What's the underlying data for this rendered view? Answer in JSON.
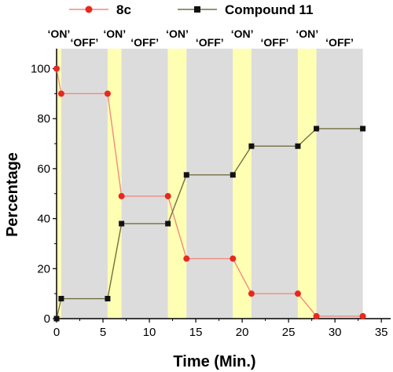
{
  "chart_data": {
    "type": "line",
    "xlabel": "Time (Min.)",
    "ylabel": "Percentage",
    "xlim": [
      0,
      36
    ],
    "ylim": [
      0,
      108
    ],
    "xticks": [
      0,
      5,
      10,
      15,
      20,
      25,
      30,
      35
    ],
    "yticks": [
      0,
      20,
      40,
      60,
      80,
      100
    ],
    "x_tick_labels": [
      "0",
      "5",
      "10",
      "15",
      "20",
      "25",
      "30",
      "35"
    ],
    "y_tick_labels": [
      "0",
      "20",
      "40",
      "60",
      "80",
      "100"
    ],
    "grid": false,
    "legend_position": "top",
    "phases": [
      {
        "label": "‘ON’",
        "start": 0,
        "end": 0.5,
        "color": "#ffffb3"
      },
      {
        "label": "‘OFF’",
        "start": 0.5,
        "end": 5.5,
        "color": "#dcdcdc"
      },
      {
        "label": "‘ON’",
        "start": 5.5,
        "end": 7,
        "color": "#ffffb3"
      },
      {
        "label": "‘OFF’",
        "start": 7,
        "end": 12,
        "color": "#dcdcdc"
      },
      {
        "label": "‘ON’",
        "start": 12,
        "end": 14,
        "color": "#ffffb3"
      },
      {
        "label": "‘OFF’",
        "start": 14,
        "end": 19,
        "color": "#dcdcdc"
      },
      {
        "label": "‘ON’",
        "start": 19,
        "end": 21,
        "color": "#ffffb3"
      },
      {
        "label": "‘OFF’",
        "start": 21,
        "end": 26,
        "color": "#dcdcdc"
      },
      {
        "label": "‘ON’",
        "start": 26,
        "end": 28,
        "color": "#ffffb3"
      },
      {
        "label": "‘OFF’",
        "start": 28,
        "end": 33,
        "color": "#dcdcdc"
      }
    ],
    "series": [
      {
        "name": "8c",
        "color": "#e8281e",
        "line_color": "#f08a80",
        "marker": "circle",
        "x": [
          0,
          0.5,
          5.5,
          7,
          12,
          14,
          19,
          21,
          26,
          28,
          33
        ],
        "y": [
          100,
          90,
          90,
          49,
          49,
          24,
          24,
          10,
          10,
          1,
          1
        ]
      },
      {
        "name": "Compound 11",
        "color": "#111111",
        "line_color": "#707040",
        "marker": "square",
        "x": [
          0,
          0.5,
          5.5,
          7,
          12,
          14,
          19,
          21,
          26,
          28,
          33
        ],
        "y": [
          0,
          8,
          8,
          38,
          38,
          57.5,
          57.5,
          69,
          69,
          76,
          76
        ]
      }
    ]
  }
}
